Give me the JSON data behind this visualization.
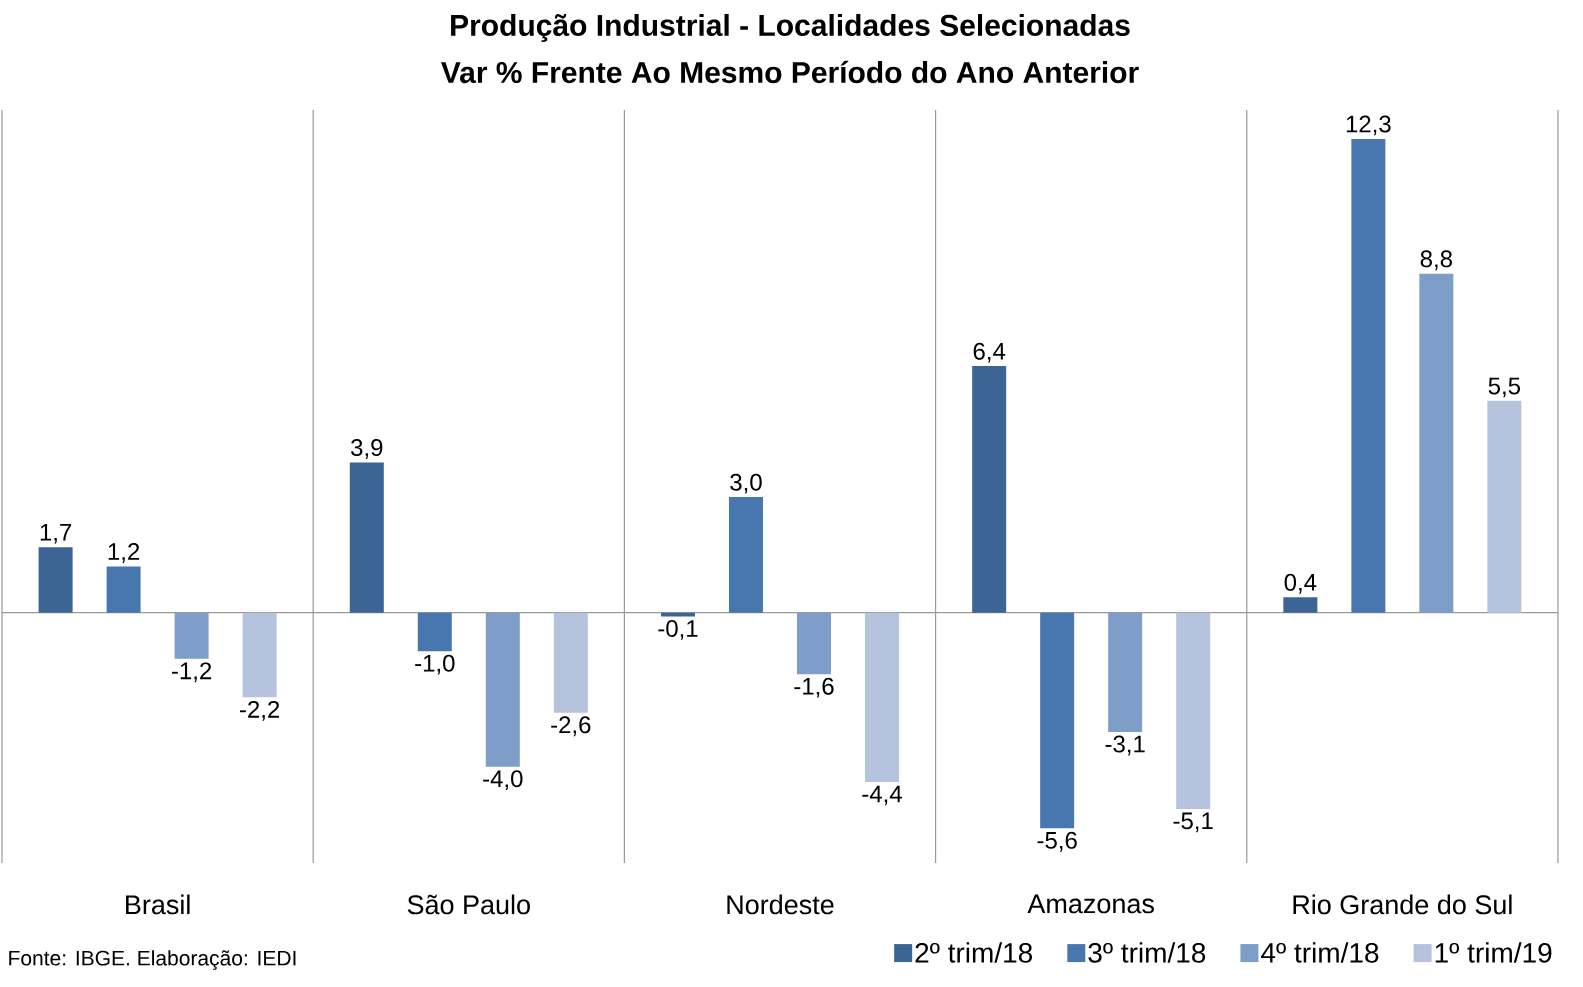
{
  "chart_data": {
    "type": "bar",
    "title": "Produção Industrial - Localidades Selecionadas",
    "subtitle": "Var % Frente Ao Mesmo Período do Ano Anterior",
    "categories": [
      "Brasil",
      "São Paulo",
      "Nordeste",
      "Amazonas",
      "Rio Grande do Sul"
    ],
    "series": [
      {
        "name": "2º trim/18",
        "color": "#3c6494",
        "values": [
          1.7,
          3.9,
          -0.1,
          6.4,
          0.4
        ],
        "value_labels": [
          "1,7",
          "3,9",
          "-0,1",
          "6,4",
          "0,4"
        ]
      },
      {
        "name": "3º trim/18",
        "color": "#4877b0",
        "values": [
          1.2,
          -1.0,
          3.0,
          -5.6,
          12.3
        ],
        "value_labels": [
          "1,2",
          "-1,0",
          "3,0",
          "-5,6",
          "12,3"
        ]
      },
      {
        "name": "4º trim/18",
        "color": "#7f9dc9",
        "values": [
          -1.2,
          -4.0,
          -1.6,
          -3.1,
          8.8
        ],
        "value_labels": [
          "-1,2",
          "-4,0",
          "-1,6",
          "-3,1",
          "8,8"
        ]
      },
      {
        "name": "1º trim/19",
        "color": "#b5c3df",
        "values": [
          -2.2,
          -2.6,
          -4.4,
          -5.1,
          5.5
        ],
        "value_labels": [
          "-2,2",
          "-2,6",
          "-4,4",
          "-5,1",
          "5,5"
        ]
      }
    ],
    "annotations": [
      "Fonte: IBGE. Elaboração: IEDI"
    ],
    "grid": "x",
    "legend": "bottom right"
  }
}
